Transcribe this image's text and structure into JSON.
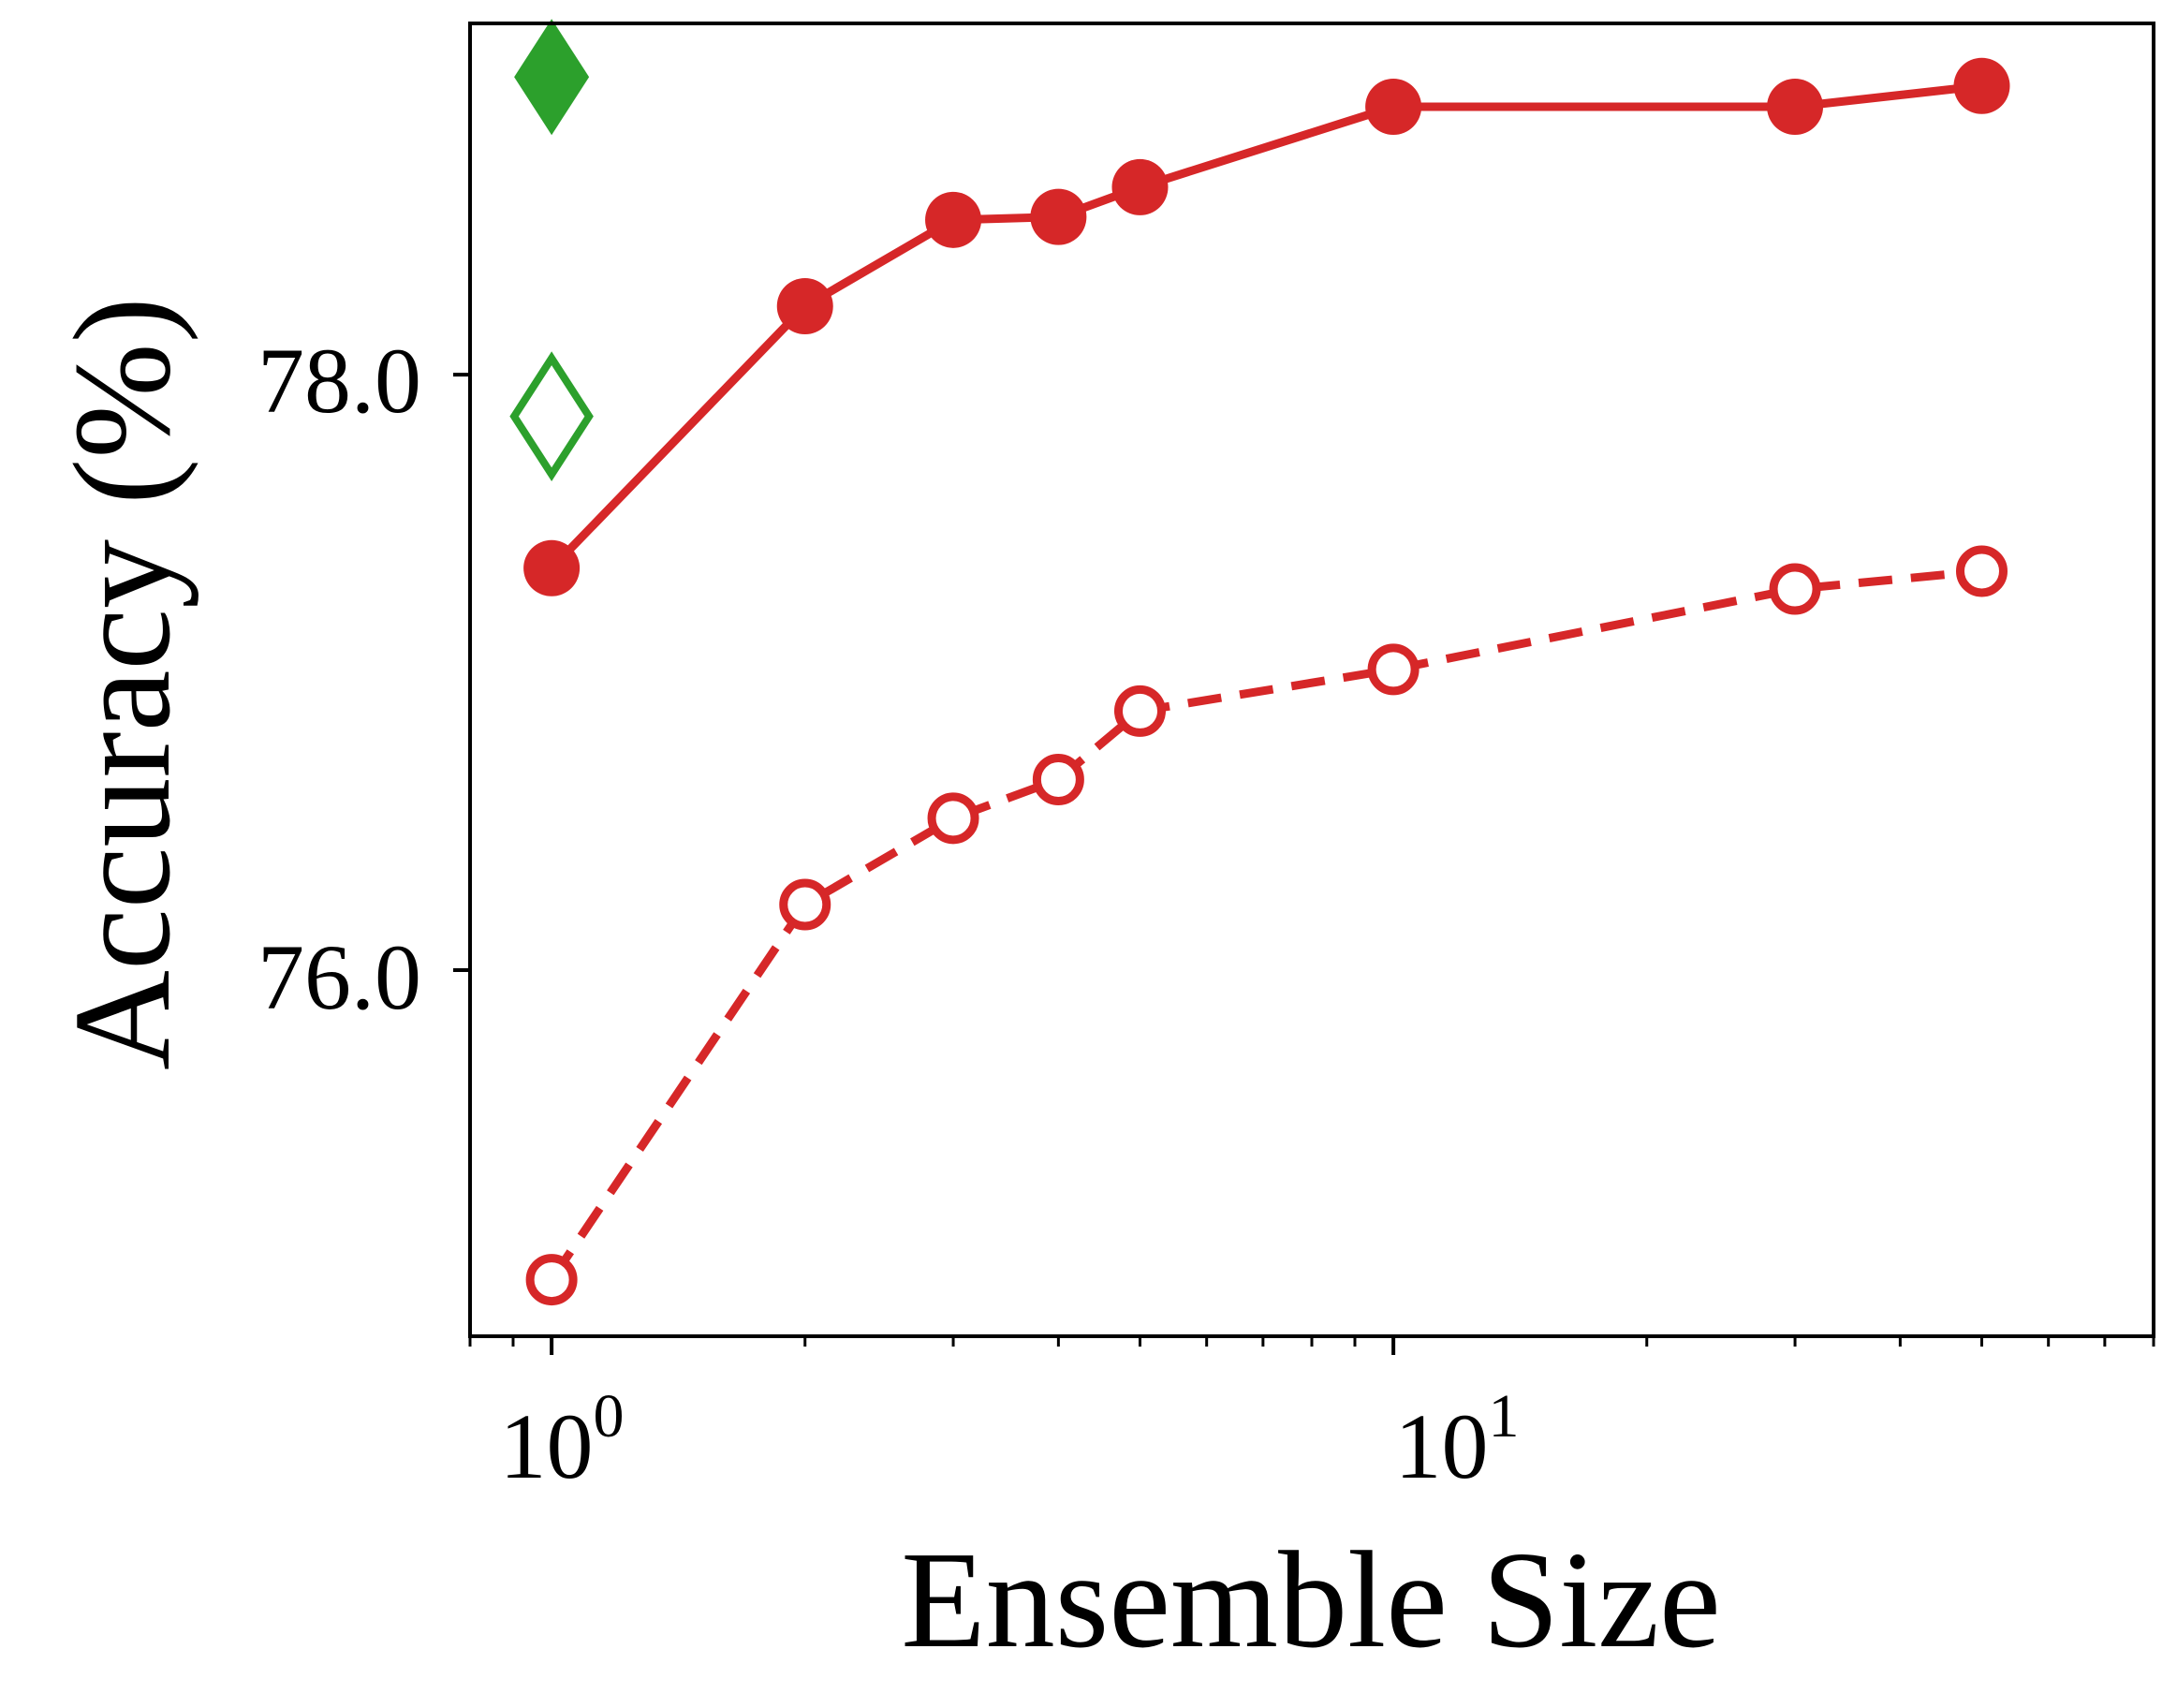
{
  "chart_data": {
    "type": "line",
    "title": "",
    "xlabel": "Ensemble Size",
    "ylabel": "Accuracy (%)",
    "xscale": "log",
    "xlim": [
      0.8,
      80
    ],
    "ylim": [
      74.77,
      79.18
    ],
    "x_tick_values": [
      1,
      10
    ],
    "x_tick_labels": [
      {
        "base": "10",
        "exp": "0"
      },
      {
        "base": "10",
        "exp": "1"
      }
    ],
    "y_tick_values": [
      76.0,
      78.0
    ],
    "y_tick_labels": [
      "76.0",
      "78.0"
    ],
    "grid": false,
    "series": [
      {
        "name": "solid",
        "style": "solid",
        "marker": "filled-circle",
        "color": "#d62728",
        "x": [
          1,
          2,
          3,
          4,
          5,
          10,
          30,
          50
        ],
        "y": [
          77.35,
          78.23,
          78.52,
          78.53,
          78.63,
          78.9,
          78.9,
          78.97
        ]
      },
      {
        "name": "dashed",
        "style": "dashed",
        "marker": "open-circle",
        "color": "#d62728",
        "x": [
          1,
          2,
          3,
          4,
          5,
          10,
          30,
          50
        ],
        "y": [
          74.96,
          76.22,
          76.51,
          76.64,
          76.87,
          77.01,
          77.28,
          77.34
        ]
      }
    ],
    "markers": [
      {
        "name": "filled-diamond",
        "x": 1,
        "y": 79.0,
        "fill": true,
        "color": "#2ca02c"
      },
      {
        "name": "open-diamond",
        "x": 1,
        "y": 77.86,
        "fill": false,
        "color": "#2ca02c"
      }
    ]
  }
}
